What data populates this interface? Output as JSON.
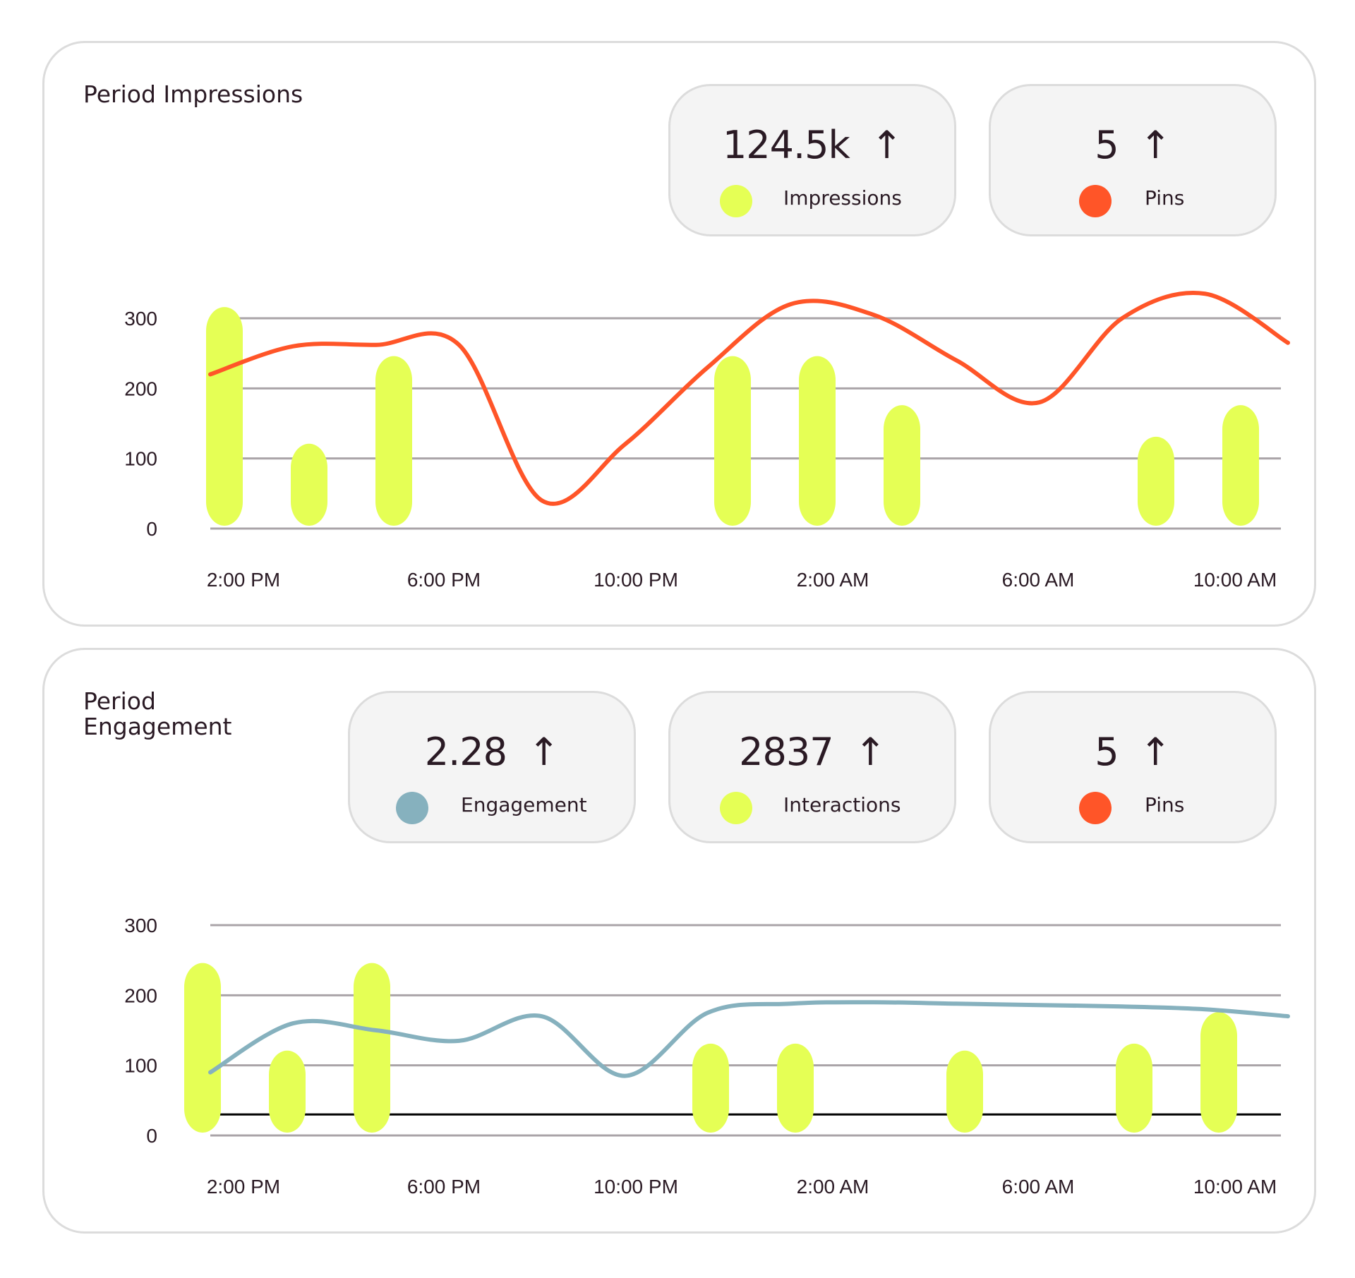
{
  "colors": {
    "bar": "#e5ff55",
    "pins": "#ff5528",
    "engagement": "#86b1be",
    "grid": "#aaa4a8",
    "baseline": "#000000"
  },
  "impressions_card": {
    "title": "Period Impressions",
    "stats": [
      {
        "value": "124.5k",
        "arrow": "↑",
        "label": "Impressions",
        "color": "#e5ff55"
      },
      {
        "value": "5",
        "arrow": "↑",
        "label": "Pins",
        "color": "#ff5528"
      }
    ]
  },
  "engagement_card": {
    "title": "Period Engagement",
    "stats": [
      {
        "value": "2.28",
        "arrow": "↑",
        "label": "Engagement",
        "color": "#86b1be"
      },
      {
        "value": "2837",
        "arrow": "↑",
        "label": "Interactions",
        "color": "#e5ff55"
      },
      {
        "value": "5",
        "arrow": "↑",
        "label": "Pins",
        "color": "#ff5528"
      }
    ]
  },
  "chart_data": [
    {
      "type": "bar",
      "title": "Period Impressions",
      "ylim": [
        0,
        300
      ],
      "yticks": [
        "0",
        "100",
        "200",
        "300"
      ],
      "xtick_labels": [
        "2:00 PM",
        "6:00 PM",
        "10:00 PM",
        "2:00 AM",
        "6:00 AM",
        "10:00 AM"
      ],
      "grid": true,
      "bars": {
        "name": "Impressions",
        "values": [
          310,
          115,
          240,
          0,
          0,
          0,
          240,
          240,
          170,
          0,
          0,
          125,
          170
        ]
      },
      "line": {
        "name": "Pins",
        "values": [
          220,
          260,
          262,
          262,
          40,
          120,
          230,
          320,
          305,
          240,
          180,
          300,
          335,
          265
        ]
      }
    },
    {
      "type": "bar",
      "title": "Period Engagement",
      "ylim": [
        0,
        300
      ],
      "yticks": [
        "0",
        "100",
        "200",
        "300"
      ],
      "xtick_labels": [
        "2:00 PM",
        "6:00 PM",
        "10:00 PM",
        "2:00 AM",
        "6:00 AM",
        "10:00 AM"
      ],
      "grid": true,
      "reference_line": 30,
      "bars": {
        "name": "Interactions",
        "values": [
          240,
          115,
          240,
          0,
          0,
          0,
          125,
          125,
          0,
          115,
          0,
          125,
          170
        ]
      },
      "line": {
        "name": "Engagement",
        "values": [
          90,
          160,
          150,
          135,
          170,
          85,
          175,
          188,
          190,
          188,
          186,
          184,
          180,
          170
        ]
      }
    }
  ]
}
